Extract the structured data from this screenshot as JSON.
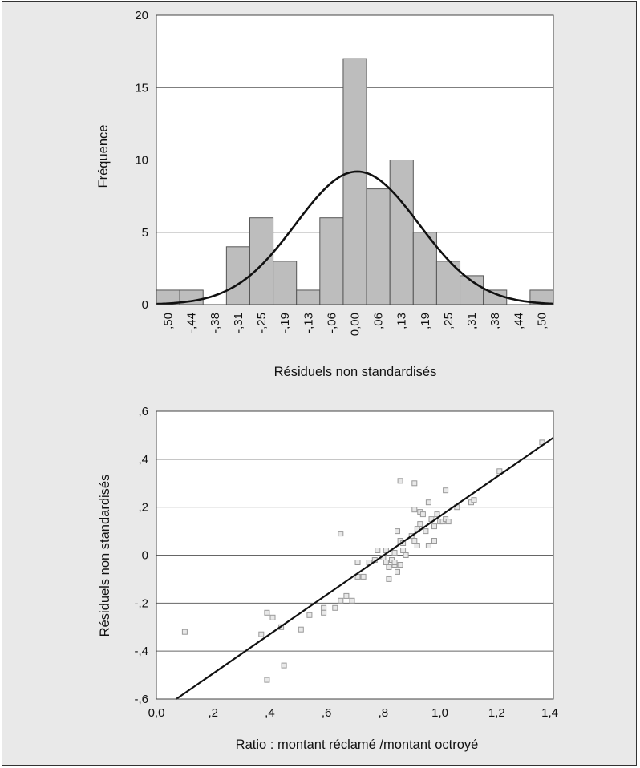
{
  "chart_data": [
    {
      "type": "bar",
      "ylabel": "Fréquence",
      "xlabel": "Résiduels non standardisés",
      "ylim": [
        0,
        20
      ],
      "yticks": [
        "0",
        "5",
        "10",
        "15",
        "20"
      ],
      "categories": [
        ",50",
        "-,44",
        "-,38",
        "-,31",
        "-,25",
        "-,19",
        "-,13",
        "-,06",
        "0,00",
        ",06",
        ",13",
        ",19",
        ",25",
        ",31",
        ",38",
        ",44",
        ",50"
      ],
      "values": [
        1,
        1,
        0,
        4,
        6,
        3,
        1,
        6,
        17,
        8,
        10,
        5,
        3,
        2,
        1,
        0,
        1
      ],
      "overlay": {
        "type": "normal-curve",
        "peak": 9.2
      },
      "grid": "horizontal",
      "colors": {
        "bar": "#bdbdbd",
        "curve": "#111111",
        "plot_bg": "#ffffff",
        "panel_bg": "#e9e9e9"
      }
    },
    {
      "type": "scatter",
      "xlabel": "Ratio : montant réclamé /montant octroyé",
      "ylabel": "Résiduels non standardisés",
      "xlim": [
        0,
        1.4
      ],
      "ylim": [
        -0.6,
        0.6
      ],
      "xticks": [
        "0,0",
        ",2",
        ",4",
        ",6",
        ",8",
        "1,0",
        "1,2",
        "1,4"
      ],
      "yticks": [
        "-,6",
        "-,4",
        "-,2",
        "0",
        ",2",
        ",4",
        ",6"
      ],
      "grid": "horizontal",
      "fit_line": {
        "x": [
          0.07,
          1.4
        ],
        "y": [
          -0.6,
          0.49
        ]
      },
      "points": [
        [
          0.1,
          -0.32
        ],
        [
          0.37,
          -0.33
        ],
        [
          0.39,
          -0.24
        ],
        [
          0.41,
          -0.26
        ],
        [
          0.44,
          -0.3
        ],
        [
          0.45,
          -0.46
        ],
        [
          0.39,
          -0.52
        ],
        [
          0.51,
          -0.31
        ],
        [
          0.54,
          -0.25
        ],
        [
          0.59,
          -0.22
        ],
        [
          0.59,
          -0.24
        ],
        [
          0.63,
          -0.22
        ],
        [
          0.65,
          0.09
        ],
        [
          0.65,
          -0.19
        ],
        [
          0.67,
          -0.17
        ],
        [
          0.69,
          -0.19
        ],
        [
          0.71,
          -0.03
        ],
        [
          0.71,
          -0.09
        ],
        [
          0.73,
          -0.09
        ],
        [
          0.75,
          -0.03
        ],
        [
          0.77,
          -0.02
        ],
        [
          0.78,
          0.02
        ],
        [
          0.8,
          -0.01
        ],
        [
          0.81,
          0.02
        ],
        [
          0.81,
          -0.03
        ],
        [
          0.82,
          -0.05
        ],
        [
          0.82,
          -0.1
        ],
        [
          0.83,
          -0.02
        ],
        [
          0.84,
          0.01
        ],
        [
          0.84,
          -0.04
        ],
        [
          0.85,
          0.1
        ],
        [
          0.85,
          -0.07
        ],
        [
          0.86,
          -0.04
        ],
        [
          0.86,
          0.06
        ],
        [
          0.87,
          0.05
        ],
        [
          0.87,
          0.02
        ],
        [
          0.86,
          0.31
        ],
        [
          0.9,
          0.08
        ],
        [
          0.91,
          0.3
        ],
        [
          0.91,
          0.19
        ],
        [
          0.91,
          0.06
        ],
        [
          0.92,
          0.11
        ],
        [
          0.92,
          0.04
        ],
        [
          0.93,
          0.13
        ],
        [
          0.93,
          0.18
        ],
        [
          0.95,
          0.1
        ],
        [
          0.96,
          0.22
        ],
        [
          0.96,
          0.04
        ],
        [
          0.97,
          0.15
        ],
        [
          0.98,
          0.12
        ],
        [
          0.98,
          0.06
        ],
        [
          0.99,
          0.17
        ],
        [
          1.0,
          0.14
        ],
        [
          1.01,
          0.14
        ],
        [
          1.02,
          0.27
        ],
        [
          1.02,
          0.15
        ],
        [
          1.03,
          0.14
        ],
        [
          1.06,
          0.2
        ],
        [
          1.11,
          0.22
        ],
        [
          1.12,
          0.23
        ],
        [
          1.21,
          0.35
        ],
        [
          1.36,
          0.47
        ],
        [
          0.94,
          0.17
        ],
        [
          0.88,
          0.0
        ],
        [
          0.84,
          -0.03
        ]
      ],
      "colors": {
        "marker": "#9a9a9a",
        "marker_fill": "#e8e8e8",
        "line": "#111111",
        "plot_bg": "#ffffff"
      }
    }
  ]
}
